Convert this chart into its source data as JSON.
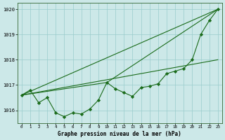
{
  "x": [
    0,
    1,
    2,
    3,
    4,
    5,
    6,
    7,
    8,
    9,
    10,
    11,
    12,
    13,
    14,
    15,
    16,
    17,
    18,
    19,
    20,
    21,
    22,
    23
  ],
  "y": [
    1016.6,
    1016.8,
    1016.3,
    1016.5,
    1015.9,
    1015.75,
    1015.9,
    1015.85,
    1016.05,
    1016.4,
    1017.1,
    1016.85,
    1016.7,
    1016.55,
    1016.9,
    1016.95,
    1017.05,
    1017.45,
    1017.55,
    1017.65,
    1018.0,
    1019.0,
    1019.55,
    1020.0
  ],
  "straight_lines": [
    {
      "x": [
        0,
        23
      ],
      "y": [
        1016.6,
        1020.0
      ]
    },
    {
      "x": [
        0,
        10
      ],
      "y": [
        1016.6,
        1017.1
      ]
    },
    {
      "x": [
        10,
        23
      ],
      "y": [
        1017.1,
        1020.0
      ]
    },
    {
      "x": [
        0,
        23
      ],
      "y": [
        1016.6,
        1018.0
      ]
    }
  ],
  "main_color": "#1a6b1a",
  "bg_color": "#cce8e8",
  "grid_color": "#99cccc",
  "ylim": [
    1015.5,
    1020.25
  ],
  "xlim": [
    -0.5,
    23.5
  ],
  "yticks": [
    1016,
    1017,
    1018,
    1019,
    1020
  ],
  "xticks": [
    0,
    1,
    2,
    3,
    4,
    5,
    6,
    7,
    8,
    9,
    10,
    11,
    12,
    13,
    14,
    15,
    16,
    17,
    18,
    19,
    20,
    21,
    22,
    23
  ],
  "xlabel": "Graphe pression niveau de la mer (hPa)",
  "marker": "D",
  "markersize": 2.2,
  "linewidth": 0.8
}
